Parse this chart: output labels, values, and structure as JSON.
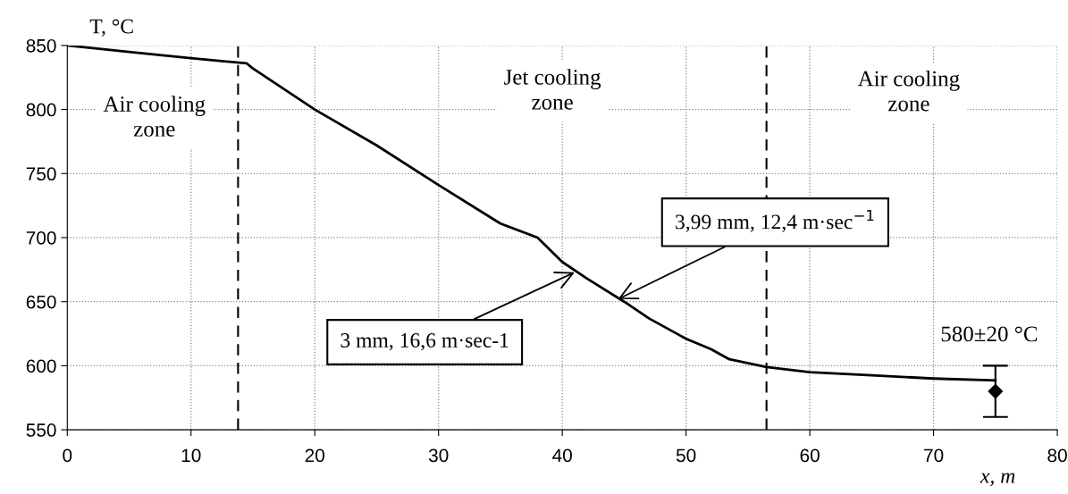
{
  "chart_data": {
    "type": "line",
    "xlabel": "x, m",
    "ylabel": "T, °C",
    "xlim": [
      0,
      80
    ],
    "xticks": [
      0,
      10,
      20,
      30,
      40,
      50,
      60,
      70,
      80
    ],
    "ylim": [
      550,
      850
    ],
    "yticks": [
      550,
      600,
      650,
      700,
      750,
      800,
      850
    ],
    "grid": true,
    "series": [
      {
        "color": "#000000",
        "marker": "none",
        "line_style": "solid",
        "x": [
          0,
          5,
          10,
          14.5,
          15,
          20,
          25,
          30,
          35,
          38,
          40,
          42,
          45,
          47,
          50,
          52,
          53.5,
          56.5,
          60,
          65,
          70,
          75
        ],
        "values": [
          850,
          845,
          840,
          836,
          832,
          800,
          772,
          741,
          711,
          700,
          681,
          668,
          650,
          637,
          621,
          613,
          605,
          599,
          595,
          592.5,
          590,
          588.5
        ]
      },
      {
        "type": "scatter",
        "color": "#000000",
        "marker": "diamond",
        "x": [
          75
        ],
        "values": [
          580
        ],
        "errors": [
          20
        ]
      }
    ],
    "ref_lines": [
      {
        "axis": "x",
        "value": 13.8,
        "color": "#000000",
        "line_style": "dashed"
      },
      {
        "axis": "x",
        "value": 56.5,
        "color": "#000000",
        "line_style": "dashed"
      }
    ],
    "annotations": [
      "Air cooling\nzone",
      "Jet cooling\nzone",
      "Air cooling\nzone",
      {
        "text": "3 mm, 16,6 m·sec-1",
        "x": 41,
        "y": 673
      },
      {
        "text": "3,99 mm, 12,4 m·sec$^{−1}$",
        "x": 44.5,
        "y": 652
      },
      {
        "text": "580±20 °C",
        "x": 75,
        "y": 600
      }
    ]
  }
}
